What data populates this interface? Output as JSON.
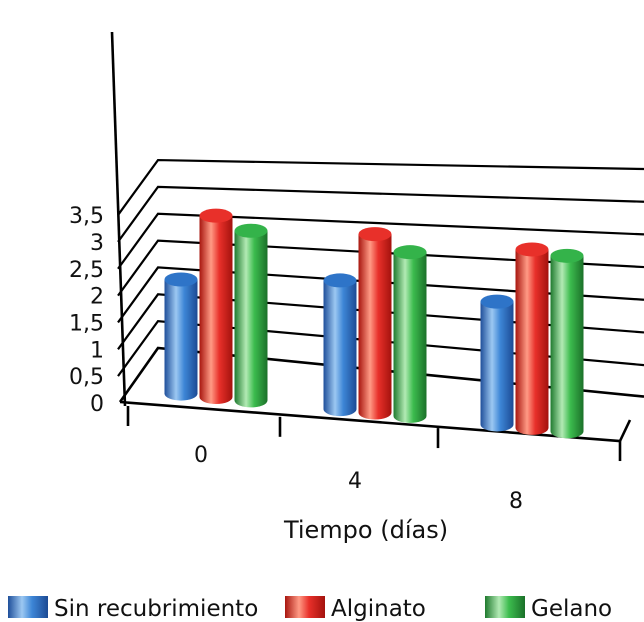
{
  "chart_data": {
    "type": "bar",
    "subtype": "3d-cylinder",
    "categories": [
      "0",
      "4",
      "8"
    ],
    "xlabel": "Tiempo (días)",
    "ylabel": "",
    "ylim": [
      0,
      3.5
    ],
    "y_ticks": [
      "0",
      "0,5",
      "1",
      "1,5",
      "2",
      "2,5",
      "3",
      "3,5"
    ],
    "grid": true,
    "legend_position": "bottom",
    "series": [
      {
        "name": "Sin recubrimiento",
        "color": "#2e74c8",
        "values": [
          1.95,
          2.2,
          2.1
        ]
      },
      {
        "name": "Alginato",
        "color": "#e8302a",
        "values": [
          3.1,
          3.05,
          3.05
        ]
      },
      {
        "name": "Gelano",
        "color": "#34b34a",
        "values": [
          2.9,
          2.8,
          3.0
        ]
      }
    ]
  }
}
